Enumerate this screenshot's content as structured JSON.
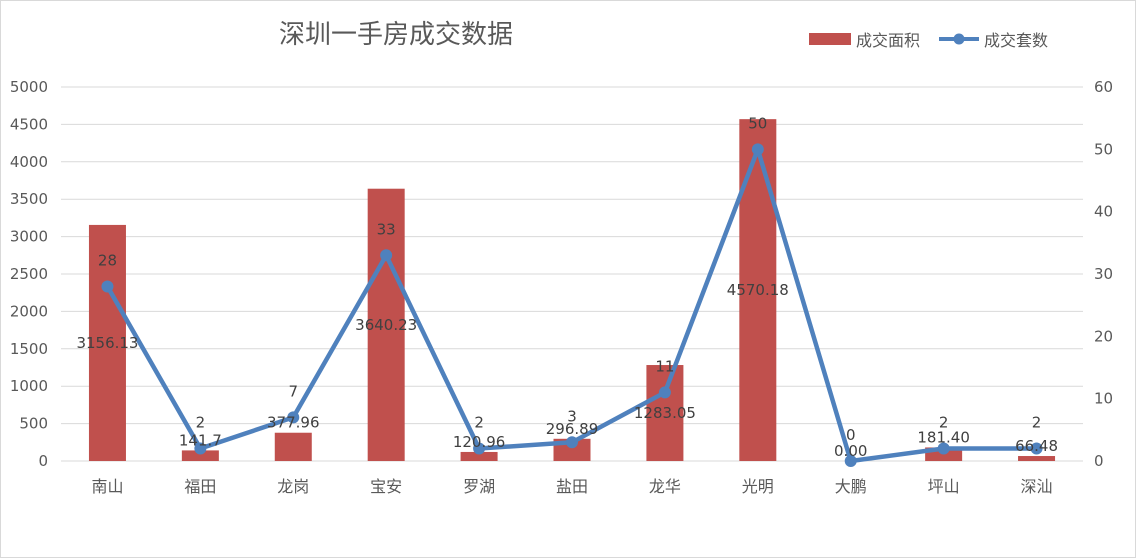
{
  "chart_data": {
    "type": "bar+line",
    "title": "深圳一手房成交数据",
    "categories": [
      "南山",
      "福田",
      "龙岗",
      "宝安",
      "罗湖",
      "盐田",
      "龙华",
      "光明",
      "大鹏",
      "坪山",
      "深汕"
    ],
    "series": [
      {
        "name": "成交面积",
        "type": "bar",
        "axis": "left",
        "color": "#c0504d",
        "values": [
          3156.13,
          141.7,
          377.96,
          3640.23,
          120.96,
          296.89,
          1283.05,
          4570.18,
          0.0,
          181.4,
          66.48
        ],
        "labels": [
          "3156.13",
          "141.7",
          "377.96",
          "3640.23",
          "120.96",
          "296.89",
          "1283.05",
          "4570.18",
          "0.00",
          "181.40",
          "66.48"
        ]
      },
      {
        "name": "成交套数",
        "type": "line",
        "axis": "right",
        "color": "#4f81bd",
        "values": [
          28,
          2,
          7,
          33,
          2,
          3,
          11,
          50,
          0,
          2,
          2
        ],
        "labels": [
          "28",
          "2",
          "7",
          "33",
          "2",
          "3",
          "11",
          "50",
          "0",
          "2",
          "2"
        ]
      }
    ],
    "y_left": {
      "min": 0,
      "max": 5000,
      "ticks": [
        "0",
        "500",
        "1000",
        "1500",
        "2000",
        "2500",
        "3000",
        "3500",
        "4000",
        "4500",
        "5000"
      ]
    },
    "y_right": {
      "min": 0,
      "max": 60,
      "ticks": [
        "0",
        "10",
        "20",
        "30",
        "40",
        "50",
        "60"
      ]
    },
    "grid": true,
    "legend_position": "top-right"
  }
}
